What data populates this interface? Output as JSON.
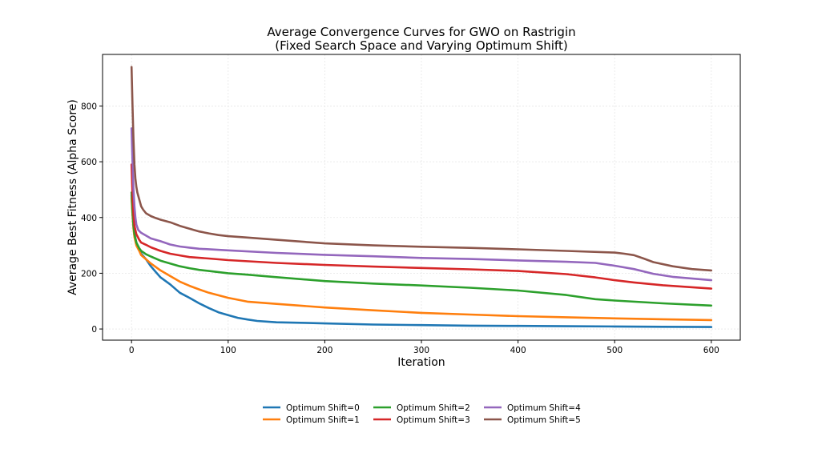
{
  "chart_data": {
    "type": "line",
    "title_lines": [
      "Average Convergence Curves for GWO on Rastrigin",
      "(Fixed Search Space and Varying Optimum Shift)"
    ],
    "xlabel": "Iteration",
    "ylabel": "Average Best Fitness (Alpha Score)",
    "xlim": [
      -30,
      630
    ],
    "ylim": [
      -40,
      985
    ],
    "xticks": [
      0,
      100,
      200,
      300,
      400,
      500,
      600
    ],
    "yticks": [
      0,
      200,
      400,
      600,
      800
    ],
    "grid": true,
    "legend_position": "below-center",
    "legend_columns": 3,
    "series": [
      {
        "name": "Optimum Shift=0",
        "color": "#1f77b4",
        "x": [
          0,
          1,
          2,
          3,
          5,
          8,
          10,
          15,
          20,
          25,
          30,
          40,
          50,
          60,
          70,
          80,
          90,
          100,
          110,
          120,
          130,
          150,
          180,
          200,
          250,
          300,
          350,
          400,
          450,
          500,
          550,
          600
        ],
        "y": [
          480,
          420,
          370,
          340,
          310,
          285,
          270,
          250,
          225,
          205,
          185,
          160,
          130,
          112,
          92,
          75,
          60,
          50,
          40,
          34,
          29,
          24,
          22,
          20,
          16,
          14,
          12,
          11,
          10,
          9,
          8,
          7
        ]
      },
      {
        "name": "Optimum Shift=1",
        "color": "#ff7f0e",
        "x": [
          0,
          1,
          2,
          3,
          5,
          8,
          10,
          15,
          20,
          30,
          40,
          50,
          60,
          70,
          80,
          100,
          120,
          150,
          200,
          250,
          300,
          350,
          400,
          450,
          500,
          550,
          600
        ],
        "y": [
          470,
          410,
          360,
          330,
          300,
          280,
          265,
          250,
          235,
          210,
          190,
          170,
          155,
          142,
          130,
          112,
          98,
          90,
          77,
          67,
          58,
          52,
          46,
          42,
          38,
          35,
          32
        ]
      },
      {
        "name": "Optimum Shift=2",
        "color": "#2ca02c",
        "x": [
          0,
          1,
          2,
          3,
          5,
          8,
          10,
          15,
          20,
          30,
          40,
          50,
          60,
          70,
          80,
          100,
          120,
          150,
          200,
          250,
          300,
          350,
          400,
          450,
          480,
          500,
          550,
          600
        ],
        "y": [
          490,
          420,
          370,
          340,
          310,
          290,
          280,
          268,
          260,
          245,
          235,
          225,
          218,
          212,
          208,
          200,
          195,
          186,
          172,
          163,
          156,
          148,
          138,
          122,
          107,
          102,
          92,
          84
        ]
      },
      {
        "name": "Optimum Shift=3",
        "color": "#d62728",
        "x": [
          0,
          1,
          2,
          3,
          5,
          8,
          10,
          15,
          20,
          30,
          40,
          50,
          60,
          80,
          100,
          150,
          200,
          250,
          300,
          350,
          400,
          450,
          480,
          500,
          520,
          550,
          600
        ],
        "y": [
          590,
          480,
          410,
          370,
          340,
          320,
          310,
          302,
          293,
          280,
          270,
          264,
          258,
          253,
          247,
          237,
          230,
          224,
          219,
          214,
          208,
          197,
          185,
          175,
          167,
          157,
          145
        ]
      },
      {
        "name": "Optimum Shift=4",
        "color": "#9467bd",
        "x": [
          0,
          1,
          2,
          3,
          4,
          5,
          7,
          10,
          15,
          20,
          30,
          40,
          50,
          60,
          70,
          100,
          150,
          200,
          250,
          300,
          350,
          400,
          450,
          480,
          500,
          520,
          540,
          560,
          600
        ],
        "y": [
          720,
          600,
          500,
          440,
          400,
          375,
          355,
          345,
          335,
          325,
          315,
          303,
          296,
          292,
          288,
          282,
          273,
          266,
          261,
          255,
          251,
          246,
          241,
          237,
          227,
          215,
          198,
          187,
          175
        ]
      },
      {
        "name": "Optimum Shift=5",
        "color": "#8c564b",
        "x": [
          0,
          1,
          2,
          3,
          4,
          5,
          6,
          8,
          10,
          12,
          15,
          20,
          25,
          30,
          40,
          50,
          60,
          70,
          80,
          90,
          100,
          120,
          150,
          200,
          250,
          300,
          350,
          400,
          450,
          500,
          510,
          520,
          530,
          540,
          560,
          580,
          600
        ],
        "y": [
          940,
          800,
          680,
          590,
          540,
          510,
          490,
          465,
          440,
          428,
          415,
          405,
          398,
          392,
          383,
          370,
          360,
          350,
          343,
          337,
          333,
          328,
          320,
          307,
          300,
          295,
          291,
          286,
          280,
          274,
          270,
          265,
          253,
          240,
          225,
          215,
          210
        ]
      }
    ]
  }
}
